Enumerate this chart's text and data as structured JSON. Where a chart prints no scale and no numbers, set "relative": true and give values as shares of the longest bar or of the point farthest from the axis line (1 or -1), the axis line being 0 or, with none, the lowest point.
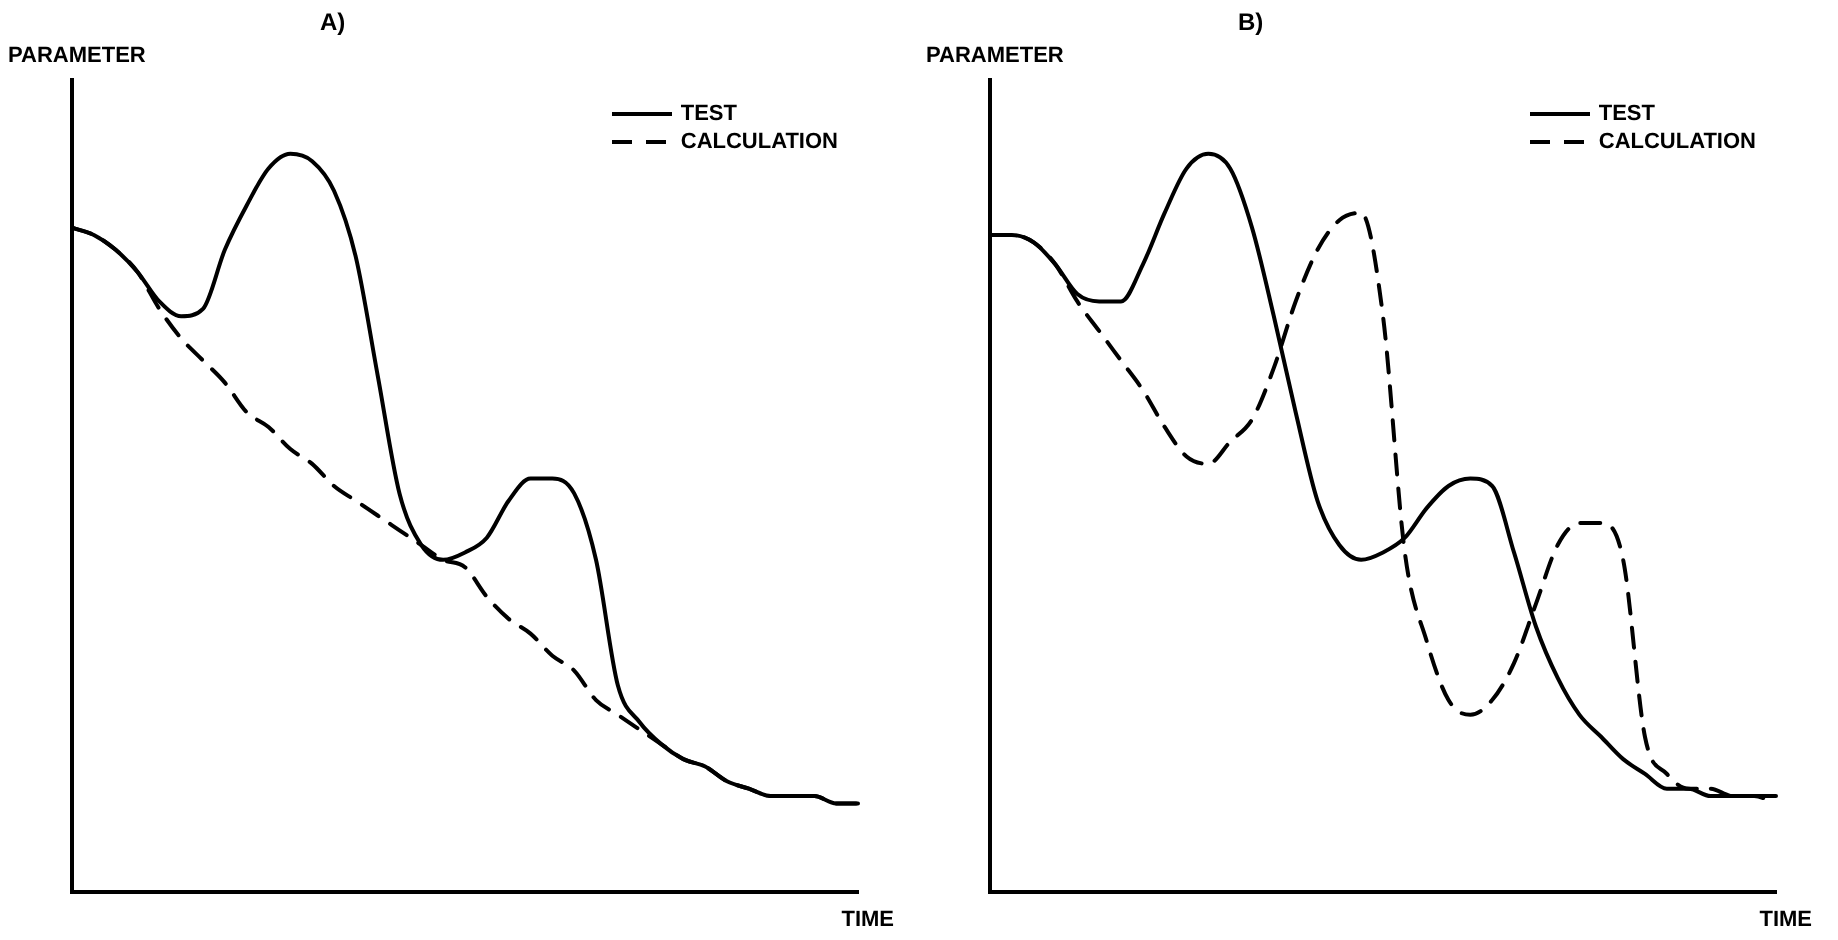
{
  "chart_data": [
    {
      "type": "line",
      "title": "A)",
      "xlabel": "TIME",
      "ylabel": "PARAMETER",
      "relative": true,
      "legend": "top right",
      "marker": "none",
      "categories": [
        null,
        null,
        null,
        null,
        null,
        null,
        null,
        null,
        null,
        null,
        null,
        null,
        null,
        null,
        null,
        null,
        null,
        null,
        null,
        null,
        null,
        null,
        null,
        null,
        null,
        null,
        null,
        null,
        null,
        null,
        null,
        null,
        null,
        null,
        null,
        null,
        null
      ],
      "series": [
        {
          "name": "TEST",
          "color": "#000000",
          "line_style": "solid",
          "values": [
            0.9,
            0.89,
            0.87,
            0.84,
            0.8,
            0.78,
            0.79,
            0.87,
            0.93,
            0.98,
            1,
            0.99,
            0.95,
            0.86,
            0.7,
            0.54,
            0.47,
            0.45,
            0.46,
            0.48,
            0.53,
            0.56,
            0.56,
            0.54,
            0.45,
            0.28,
            0.23,
            0.2,
            0.18,
            0.17,
            0.15,
            0.14,
            0.13,
            0.13,
            0.13,
            0.12,
            0.12
          ]
        },
        {
          "name": "CALCULATION",
          "color": "#000000",
          "line_style": "dashed",
          "values": [
            0.9,
            0.89,
            0.87,
            0.84,
            0.79,
            0.75,
            0.72,
            0.69,
            0.65,
            0.63,
            0.6,
            0.58,
            0.55,
            0.53,
            0.51,
            0.49,
            0.47,
            0.45,
            0.44,
            0.4,
            0.37,
            0.35,
            0.32,
            0.3,
            0.26,
            0.24,
            0.22,
            0.2,
            0.18,
            0.17,
            0.15,
            0.14,
            0.13,
            0.13,
            0.13,
            0.12,
            0.12
          ]
        }
      ]
    },
    {
      "type": "line",
      "title": "B)",
      "xlabel": "TIME",
      "ylabel": "PARAMETER",
      "relative": true,
      "legend": "top right",
      "marker": "none",
      "categories": [
        null,
        null,
        null,
        null,
        null,
        null,
        null,
        null,
        null,
        null,
        null,
        null,
        null,
        null,
        null,
        null,
        null,
        null,
        null,
        null,
        null,
        null,
        null,
        null,
        null,
        null,
        null,
        null,
        null,
        null,
        null,
        null,
        null,
        null,
        null,
        null,
        null
      ],
      "series": [
        {
          "name": "TEST",
          "color": "#000000",
          "line_style": "solid",
          "values": [
            0.89,
            0.89,
            0.88,
            0.85,
            0.81,
            0.8,
            0.8,
            0.85,
            0.92,
            0.98,
            1,
            0.98,
            0.9,
            0.78,
            0.65,
            0.53,
            0.47,
            0.45,
            0.46,
            0.48,
            0.52,
            0.55,
            0.56,
            0.55,
            0.46,
            0.36,
            0.29,
            0.24,
            0.21,
            0.18,
            0.16,
            0.14,
            0.14,
            0.13,
            0.13,
            0.13,
            0.13
          ]
        },
        {
          "name": "CALCULATION",
          "color": "#000000",
          "line_style": "dashed",
          "values": [
            0.89,
            0.89,
            0.88,
            0.85,
            0.8,
            0.76,
            0.72,
            0.68,
            0.63,
            0.59,
            0.58,
            0.61,
            0.64,
            0.71,
            0.8,
            0.87,
            0.91,
            0.92,
            0.78,
            0.46,
            0.34,
            0.26,
            0.24,
            0.26,
            0.31,
            0.39,
            0.47,
            0.5,
            0.5,
            0.45,
            0.21,
            0.16,
            0.14,
            0.14,
            0.13,
            0.13,
            0.12
          ]
        }
      ]
    }
  ]
}
